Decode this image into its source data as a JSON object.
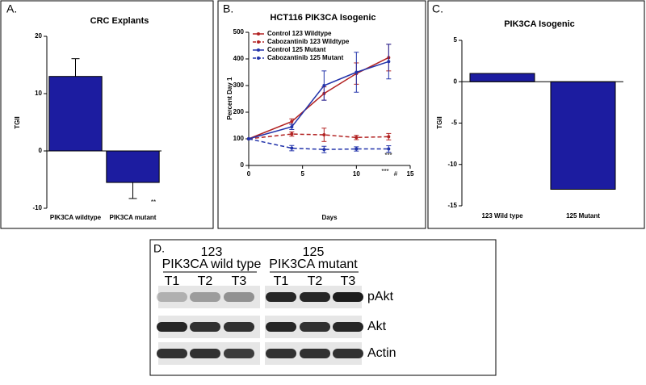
{
  "chart_data": [
    {
      "type": "bar",
      "panel_label": "A.",
      "title": "CRC Explants",
      "ylabel": "TGII",
      "categories": [
        "PIK3CA wildtype",
        "PIK3CA mutant"
      ],
      "values": [
        13,
        -5.5
      ],
      "errors": [
        3.1,
        2.8
      ],
      "color": "#1c1ca0",
      "ylim": [
        -10,
        20
      ],
      "yticks": [
        -10,
        0,
        10,
        20
      ],
      "annotations": [
        "**"
      ]
    },
    {
      "type": "line",
      "panel_label": "B.",
      "title": "HCT116 PIK3CA Isogenic",
      "xlabel": "Days",
      "ylabel": "Percent Day 1",
      "x": [
        0,
        4,
        7,
        10,
        13
      ],
      "xlim": [
        0,
        15
      ],
      "xticks": [
        0,
        5,
        10,
        15
      ],
      "ylim": [
        0,
        500
      ],
      "yticks": [
        0,
        100,
        200,
        300,
        400,
        500
      ],
      "series": [
        {
          "name": "Control 123 Wildtype",
          "color": "#b22222",
          "dashed": false,
          "values": [
            100,
            165,
            270,
            345,
            405
          ],
          "errors": [
            0,
            10,
            25,
            40,
            50
          ]
        },
        {
          "name": "Cabozantinib 123 Wildtype",
          "color": "#b22222",
          "dashed": true,
          "values": [
            100,
            118,
            115,
            105,
            108
          ],
          "errors": [
            0,
            8,
            25,
            8,
            12
          ]
        },
        {
          "name": "Control 125 Mutant",
          "color": "#2233aa",
          "dashed": false,
          "values": [
            100,
            145,
            300,
            350,
            390
          ],
          "errors": [
            0,
            10,
            55,
            75,
            65
          ]
        },
        {
          "name": "Cabozantinib 125 Mutant",
          "color": "#2233aa",
          "dashed": true,
          "values": [
            100,
            65,
            60,
            62,
            62
          ],
          "errors": [
            0,
            10,
            12,
            8,
            12
          ]
        }
      ],
      "annotations": [
        "***",
        "***",
        "#"
      ]
    },
    {
      "type": "bar",
      "panel_label": "C.",
      "title": "PIK3CA Isogenic",
      "ylabel": "TGII",
      "categories": [
        "123 Wild type",
        "125 Mutant"
      ],
      "values": [
        1,
        -13
      ],
      "color": "#1c1ca0",
      "ylim": [
        -15,
        5
      ],
      "yticks": [
        -15,
        -10,
        -5,
        0,
        5
      ]
    }
  ],
  "blot": {
    "panel_label": "D.",
    "groups": [
      {
        "number": "123",
        "name": "PIK3CA wild type",
        "lanes": [
          "T1",
          "T2",
          "T3"
        ]
      },
      {
        "number": "125",
        "name": "PIK3CA mutant",
        "lanes": [
          "T1",
          "T2",
          "T3"
        ]
      }
    ],
    "rows": [
      "pAkt",
      "Akt",
      "Actin"
    ]
  }
}
